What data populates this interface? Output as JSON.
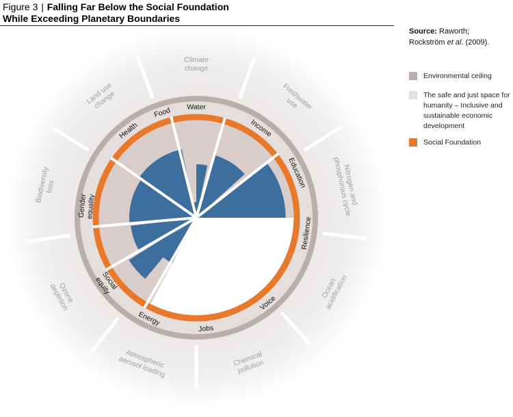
{
  "figure": {
    "prefix": "Figure 3",
    "separator": "|",
    "title_line1": "Falling Far Below the Social Foundation",
    "title_line2": "While Exceeding Planetary Boundaries"
  },
  "source": {
    "label": "Source:",
    "line1": "Raworth;",
    "line2a": "Rockström ",
    "line2b": "et al",
    "line2c": ". (2009)."
  },
  "legend": [
    {
      "label": "Environmental ceiling",
      "color": "#b9aeab"
    },
    {
      "label": "The safe and just space for humanity – Inclusive and sustainable economic development",
      "color": "#e4dedc"
    },
    {
      "label": "Social Foundation",
      "color": "#e8782a"
    }
  ],
  "planetary_boundaries": [
    {
      "lines": [
        "Climate",
        "change"
      ]
    },
    {
      "lines": [
        "Freshwater",
        "use"
      ]
    },
    {
      "lines": [
        "Nitrogen and",
        "phosphorous cycle"
      ]
    },
    {
      "lines": [
        "Ocean",
        "acidification"
      ]
    },
    {
      "lines": [
        "Chemical",
        "pollution"
      ]
    },
    {
      "lines": [
        "Atmospheric",
        "aerosol loading"
      ]
    },
    {
      "lines": [
        "Ozone",
        "depletion"
      ]
    },
    {
      "lines": [
        "Biodiversity",
        "loss"
      ]
    },
    {
      "lines": [
        "Land use",
        "change"
      ]
    }
  ],
  "social_dimensions": [
    {
      "lines": [
        "Water"
      ]
    },
    {
      "lines": [
        "Income"
      ]
    },
    {
      "lines": [
        "Education"
      ]
    },
    {
      "lines": [
        "Resilience"
      ]
    },
    {
      "lines": [
        "Voice"
      ]
    },
    {
      "lines": [
        "Jobs"
      ]
    },
    {
      "lines": [
        "Energy"
      ]
    },
    {
      "lines": [
        "Social",
        "equity"
      ]
    },
    {
      "lines": [
        "Gender",
        "equality"
      ]
    },
    {
      "lines": [
        "Health"
      ]
    },
    {
      "lines": [
        "Food"
      ]
    }
  ],
  "shortfall_wedges": [
    {
      "dimension": "Water",
      "shortfall_fraction": 0.16
    },
    {
      "dimension": "Water",
      "shortfall_fraction": 0.55
    },
    {
      "dimension": "Income",
      "shortfall_fraction": 0.67
    },
    {
      "dimension": "Education",
      "shortfall_fraction": 0.92
    },
    {
      "dimension": "Social equity",
      "shortfall_fraction": 0.53
    },
    {
      "dimension": "Social equity",
      "shortfall_fraction": 0.82
    },
    {
      "dimension": "Gender equality",
      "shortfall_fraction": 0.68
    },
    {
      "dimension": "Health",
      "shortfall_fraction": 0.69
    },
    {
      "dimension": "Food",
      "shortfall_fraction": 0.72
    }
  ],
  "colors": {
    "outer_zone": "#efedec",
    "outer_text": "#9e9e9e",
    "ceiling": "#b9aeab",
    "safe_space": "#e4dedc",
    "foundation": "#e8782a",
    "inner_zone": "#d9cdcb",
    "shortfall": "#3c6f9e",
    "divider": "#ffffff"
  }
}
